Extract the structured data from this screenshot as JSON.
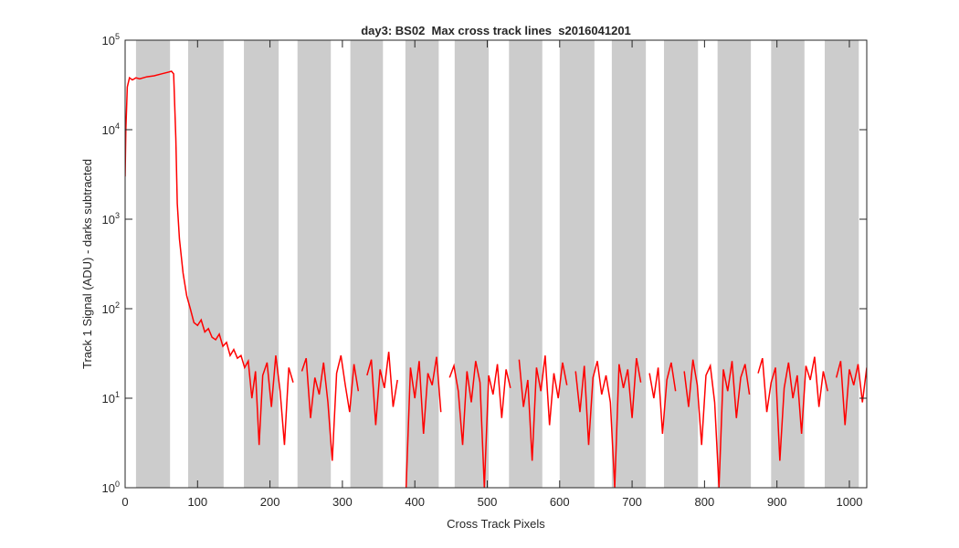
{
  "chart_data": {
    "type": "line",
    "title": "day3: BS02  Max cross track lines  s2016041201",
    "x_label": "Cross Track Pixels",
    "y_label": "Track 1 Signal (ADU) - darks subtracted",
    "log_y": true,
    "xlim": [
      0,
      1024
    ],
    "xticks": [
      0,
      100,
      200,
      300,
      400,
      500,
      600,
      700,
      800,
      900,
      1000
    ],
    "ylim": [
      1,
      100000
    ],
    "yticks": [
      {
        "value": 1,
        "label": "10",
        "exponent": "0"
      },
      {
        "value": 10,
        "label": "10",
        "exponent": "1"
      },
      {
        "value": 100,
        "label": "10",
        "exponent": "2"
      },
      {
        "value": 1000,
        "label": "10",
        "exponent": "3"
      },
      {
        "value": 10000,
        "label": "10",
        "exponent": "4"
      },
      {
        "value": 100000,
        "label": "10",
        "exponent": "5"
      }
    ],
    "bands": [
      [
        15,
        62
      ],
      [
        87,
        136
      ],
      [
        164,
        212
      ],
      [
        238,
        284
      ],
      [
        311,
        356
      ],
      [
        387,
        433
      ],
      [
        455,
        502
      ],
      [
        530,
        576
      ],
      [
        600,
        648
      ],
      [
        672,
        719
      ],
      [
        744,
        791
      ],
      [
        818,
        864
      ],
      [
        892,
        938
      ],
      [
        966,
        1013
      ]
    ],
    "band_color": "#cccccc",
    "x": [
      0,
      1,
      3,
      6,
      10,
      15,
      20,
      30,
      40,
      50,
      60,
      64,
      67,
      70,
      72,
      75,
      80,
      85,
      90,
      95,
      100,
      105,
      110,
      115,
      120,
      125,
      130,
      135,
      140,
      145,
      150,
      155,
      160,
      165,
      170,
      175,
      180,
      185,
      190,
      196,
      202,
      208,
      214,
      220,
      226,
      232,
      238,
      244,
      250,
      256,
      262,
      268,
      274,
      280,
      286,
      292,
      298,
      304,
      310,
      316,
      322,
      328,
      334,
      340,
      346,
      352,
      358,
      364,
      370,
      376,
      382,
      388,
      394,
      400,
      406,
      412,
      418,
      424,
      430,
      436,
      442,
      448,
      454,
      460,
      466,
      472,
      478,
      484,
      490,
      496,
      502,
      508,
      514,
      520,
      526,
      532,
      538,
      544,
      550,
      556,
      562,
      568,
      574,
      580,
      586,
      592,
      598,
      604,
      610,
      616,
      622,
      628,
      634,
      640,
      646,
      652,
      658,
      664,
      670,
      676,
      682,
      688,
      694,
      700,
      706,
      712,
      718,
      724,
      730,
      736,
      742,
      748,
      754,
      760,
      766,
      772,
      778,
      784,
      790,
      796,
      802,
      808,
      814,
      820,
      826,
      832,
      838,
      844,
      850,
      856,
      862,
      868,
      874,
      880,
      886,
      892,
      898,
      904,
      910,
      916,
      922,
      928,
      934,
      940,
      946,
      952,
      958,
      964,
      970,
      976,
      982,
      988,
      994,
      1000,
      1006,
      1012,
      1018,
      1024
    ],
    "series": [
      {
        "color": "#ff0000",
        "values": [
          3000,
          10000,
          30000,
          38000,
          36000,
          38000,
          37000,
          39000,
          40000,
          42000,
          44000,
          45000,
          42000,
          8000,
          1500,
          600,
          250,
          140,
          100,
          70,
          65,
          75,
          55,
          60,
          48,
          45,
          52,
          38,
          42,
          30,
          35,
          28,
          30,
          22,
          26,
          10,
          20,
          3,
          18,
          25,
          8,
          30,
          12,
          3,
          22,
          15,
          null,
          20,
          28,
          6,
          17,
          11,
          25,
          9,
          2,
          19,
          30,
          14,
          7,
          24,
          12,
          null,
          18,
          27,
          5,
          21,
          13,
          33,
          8,
          16,
          null,
          1,
          22,
          10,
          26,
          4,
          19,
          14,
          29,
          7,
          null,
          17,
          23,
          12,
          3,
          20,
          9,
          26,
          15,
          1,
          18,
          11,
          24,
          6,
          21,
          13,
          null,
          27,
          8,
          16,
          2,
          22,
          12,
          30,
          5,
          19,
          10,
          25,
          14,
          null,
          20,
          7,
          23,
          3,
          17,
          26,
          11,
          18,
          9,
          1,
          24,
          13,
          21,
          6,
          28,
          15,
          null,
          19,
          10,
          22,
          4,
          16,
          25,
          12,
          null,
          20,
          8,
          27,
          14,
          3,
          18,
          23,
          9,
          1,
          21,
          12,
          26,
          6,
          17,
          24,
          11,
          null,
          19,
          28,
          7,
          15,
          22,
          2,
          13,
          25,
          10,
          18,
          4,
          23,
          16,
          29,
          8,
          20,
          12,
          null,
          17,
          26,
          5,
          21,
          14,
          24,
          9,
          22
        ]
      }
    ]
  }
}
